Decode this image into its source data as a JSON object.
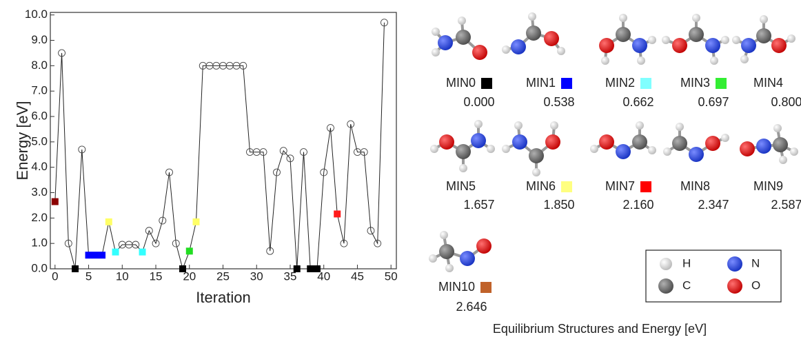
{
  "chart_data": {
    "type": "line",
    "x_label": "Iteration",
    "y_label": "Energy [eV]",
    "x": [
      0,
      1,
      2,
      3,
      4,
      5,
      6,
      7,
      8,
      9,
      10,
      11,
      12,
      13,
      14,
      15,
      16,
      17,
      18,
      19,
      20,
      21,
      22,
      23,
      24,
      25,
      26,
      27,
      28,
      29,
      30,
      31,
      32,
      33,
      34,
      35,
      36,
      37,
      38,
      39,
      40,
      41,
      42,
      43,
      44,
      45,
      46,
      47,
      48,
      49
    ],
    "series": [
      {
        "color": "#222222",
        "values": [
          2.646,
          8.5,
          1.0,
          0.0,
          4.7,
          0.538,
          0.538,
          0.538,
          1.85,
          0.662,
          0.95,
          0.95,
          0.95,
          0.662,
          1.5,
          1.0,
          1.9,
          3.8,
          1.0,
          0.0,
          0.697,
          1.85,
          8.0,
          8.0,
          8.0,
          8.0,
          8.0,
          8.0,
          8.0,
          4.6,
          4.6,
          4.6,
          0.7,
          3.8,
          4.65,
          4.35,
          0.0,
          4.6,
          0.0,
          0.0,
          3.8,
          5.55,
          2.16,
          1.0,
          5.7,
          4.6,
          4.6,
          1.5,
          1.0,
          9.7
        ],
        "marker_colors": [
          "#8b0000",
          null,
          null,
          "#000000",
          null,
          "#0000ff",
          "#0000ff",
          "#0000ff",
          "#ffff66",
          "#33ffff",
          null,
          null,
          null,
          "#33ffff",
          null,
          null,
          null,
          null,
          null,
          "#000000",
          "#22dd22",
          "#ffff66",
          null,
          null,
          null,
          null,
          null,
          null,
          null,
          null,
          null,
          null,
          null,
          null,
          null,
          null,
          "#000000",
          null,
          "#000000",
          "#000000",
          null,
          null,
          "#ff1a1a",
          null,
          null,
          null,
          null,
          null,
          null,
          null
        ]
      }
    ],
    "xlim": [
      -0.7,
      50.8
    ],
    "ylim": [
      0,
      10.1
    ],
    "xticks": [
      0,
      5,
      10,
      15,
      20,
      25,
      30,
      35,
      40,
      45,
      50
    ],
    "yticks": [
      {
        "value": 0,
        "label": "0.0"
      },
      {
        "value": 1,
        "label": "1.0"
      },
      {
        "value": 2,
        "label": "2.0"
      },
      {
        "value": 3,
        "label": "3.0"
      },
      {
        "value": 4,
        "label": "4.0"
      },
      {
        "value": 5,
        "label": "5.0"
      },
      {
        "value": 6,
        "label": "6.0"
      },
      {
        "value": 7,
        "label": "7.0"
      },
      {
        "value": 8,
        "label": "8.0"
      },
      {
        "value": 9,
        "label": "9.0"
      },
      {
        "value": 10,
        "label": "10.0"
      }
    ]
  },
  "structures": {
    "caption": "Equilibrium Structures and Energy [eV]",
    "items": [
      {
        "name": "MIN0",
        "color": "#000000",
        "energy": "0.000"
      },
      {
        "name": "MIN1",
        "color": "#0000ff",
        "energy": "0.538"
      },
      {
        "name": "MIN2",
        "color": "#80ffff",
        "energy": "0.662"
      },
      {
        "name": "MIN3",
        "color": "#33ee33",
        "energy": "0.697"
      },
      {
        "name": "MIN4",
        "energy": "0.800"
      },
      {
        "name": "MIN5",
        "energy": "1.657"
      },
      {
        "name": "MIN6",
        "color": "#ffff80",
        "energy": "1.850"
      },
      {
        "name": "MIN7",
        "color": "#ff0000",
        "energy": "2.160"
      },
      {
        "name": "MIN8",
        "energy": "2.347"
      },
      {
        "name": "MIN9",
        "energy": "2.587"
      },
      {
        "name": "MIN10",
        "color": "#c0622a",
        "energy": "2.646"
      }
    ],
    "atom_legend": [
      {
        "symbol": "H"
      },
      {
        "symbol": "N"
      },
      {
        "symbol": "C"
      },
      {
        "symbol": "O"
      }
    ]
  }
}
